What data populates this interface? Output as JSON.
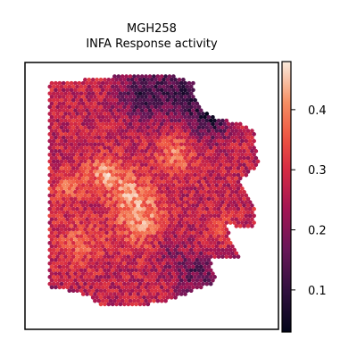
{
  "chart_data": {
    "type": "heatmap",
    "title": "MGH258",
    "subtitle": "INFA Response activity",
    "xlabel": "",
    "ylabel": "",
    "colormap": "rocket",
    "colorbar": {
      "range": [
        0.03,
        0.48
      ],
      "ticks": [
        0.1,
        0.2,
        0.3,
        0.4
      ],
      "tick_labels": [
        "0.1",
        "0.2",
        "0.3",
        "0.4"
      ]
    },
    "tissue_outline": [
      [
        0.07,
        0.05
      ],
      [
        0.07,
        0.87
      ],
      [
        0.22,
        0.9
      ],
      [
        0.3,
        0.95
      ],
      [
        0.42,
        0.95
      ],
      [
        0.55,
        0.93
      ],
      [
        0.66,
        0.89
      ],
      [
        0.74,
        0.86
      ],
      [
        0.76,
        0.83
      ],
      [
        0.74,
        0.76
      ],
      [
        0.86,
        0.75
      ],
      [
        0.82,
        0.68
      ],
      [
        0.81,
        0.62
      ],
      [
        0.93,
        0.64
      ],
      [
        0.92,
        0.54
      ],
      [
        0.89,
        0.5
      ],
      [
        0.86,
        0.45
      ],
      [
        0.94,
        0.38
      ],
      [
        0.93,
        0.33
      ],
      [
        0.92,
        0.24
      ],
      [
        0.85,
        0.21
      ],
      [
        0.78,
        0.2
      ],
      [
        0.71,
        0.16
      ],
      [
        0.67,
        0.1
      ],
      [
        0.67,
        0.05
      ],
      [
        0.58,
        0.02
      ],
      [
        0.4,
        0.02
      ],
      [
        0.22,
        0.04
      ]
    ],
    "hotspots": [
      {
        "x": 0.45,
        "y": 0.6,
        "value": 0.4,
        "radius": 0.11
      },
      {
        "x": 0.3,
        "y": 0.41,
        "value": 0.4,
        "radius": 0.07
      },
      {
        "x": 0.6,
        "y": 0.34,
        "value": 0.39,
        "radius": 0.08
      },
      {
        "x": 0.2,
        "y": 0.7,
        "value": 0.36,
        "radius": 0.09
      },
      {
        "x": 0.15,
        "y": 0.47,
        "value": 0.35,
        "radius": 0.08
      },
      {
        "x": 0.4,
        "y": 0.48,
        "value": 0.36,
        "radius": 0.09
      },
      {
        "x": 0.78,
        "y": 0.63,
        "value": 0.33,
        "radius": 0.05
      }
    ],
    "coldspots": [
      {
        "x": 0.65,
        "y": 0.08,
        "value": 0.12,
        "radius": 0.14
      },
      {
        "x": 0.45,
        "y": 0.1,
        "value": 0.14,
        "radius": 0.1
      },
      {
        "x": 0.75,
        "y": 0.2,
        "value": 0.14,
        "radius": 0.08
      },
      {
        "x": 0.68,
        "y": 0.82,
        "value": 0.16,
        "radius": 0.09
      },
      {
        "x": 0.83,
        "y": 0.88,
        "value": 0.18,
        "radius": 0.08
      },
      {
        "x": 0.57,
        "y": 0.72,
        "value": 0.2,
        "radius": 0.06
      },
      {
        "x": 0.1,
        "y": 0.92,
        "value": 0.18,
        "radius": 0.05
      }
    ],
    "baseline_value": 0.27
  }
}
